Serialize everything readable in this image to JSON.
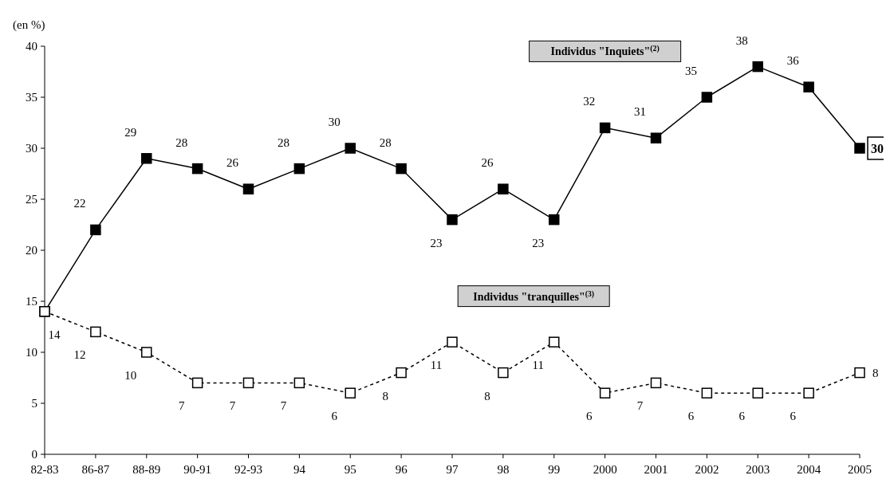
{
  "chart_data": {
    "type": "line",
    "ylabel": "(en %)",
    "categories": [
      "82-83",
      "86-87",
      "88-89",
      "90-91",
      "92-93",
      "94",
      "95",
      "96",
      "97",
      "98",
      "99",
      "2000",
      "2001",
      "2002",
      "2003",
      "2004",
      "2005"
    ],
    "series": [
      {
        "name": "Individus \"Inquiets\"$^{(2)}$",
        "color": "#000000",
        "line_style": "solid",
        "values": [
          14,
          22,
          29,
          28,
          26,
          28,
          30,
          28,
          23,
          26,
          23,
          32,
          31,
          35,
          38,
          36,
          30
        ],
        "value_labels": [
          null,
          "22",
          "29",
          "28",
          "26",
          "28",
          "30",
          "28",
          "23",
          "26",
          "23",
          "32",
          "31",
          "35",
          "38",
          "36",
          "30"
        ]
      },
      {
        "name": "Individus \"tranquilles\"$^{(3)}$",
        "color": "#000000",
        "line_style": "dashed",
        "values": [
          14,
          12,
          10,
          7,
          7,
          7,
          6,
          8,
          11,
          8,
          11,
          6,
          7,
          6,
          6,
          6,
          8
        ],
        "value_labels": [
          "14",
          "12",
          "10",
          "7",
          "7",
          "7",
          "6",
          "8",
          "11",
          "8",
          "11",
          "6",
          "7",
          "6",
          "6",
          "6",
          "8"
        ]
      }
    ],
    "ylim": [
      0,
      40
    ],
    "yticks": [
      0,
      5,
      10,
      15,
      20,
      25,
      30,
      35,
      40
    ],
    "grid": false,
    "marker": "square"
  }
}
